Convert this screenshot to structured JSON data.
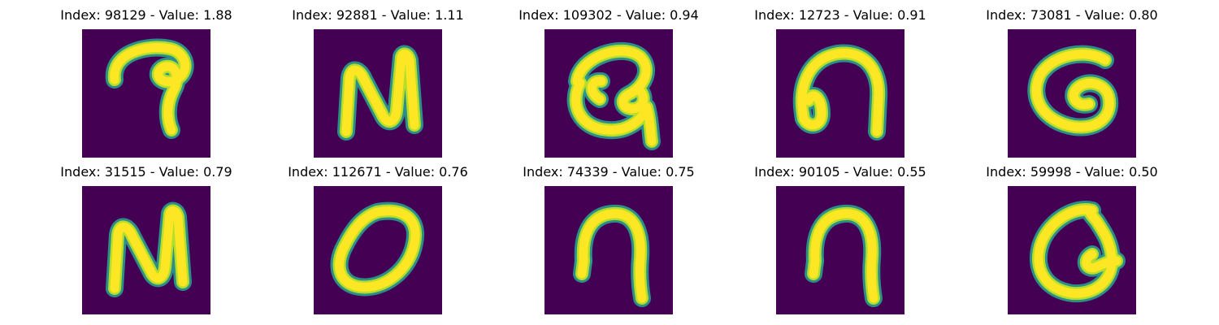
{
  "colors": {
    "background": "#440154",
    "stroke_core": "#fde725",
    "stroke_edge": "#2a9d8f",
    "stroke_mid": "#b5de2b"
  },
  "chart_data": {
    "type": "image-grid",
    "colormap": "viridis",
    "axis": "off",
    "panels": [
      {
        "title": "Index: 98129 - Value: 1.88",
        "index": 98129,
        "value": 1.88,
        "shape": "hook-curl"
      },
      {
        "title": "Index: 92881 - Value: 1.11",
        "index": 92881,
        "value": 1.11,
        "shape": "letter-N"
      },
      {
        "title": "Index: 109302 - Value: 0.94",
        "index": 109302,
        "value": 0.94,
        "shape": "swirl-loop"
      },
      {
        "title": "Index: 12723 - Value: 0.91",
        "index": 12723,
        "value": 0.91,
        "shape": "arch-loop"
      },
      {
        "title": "Index: 73081 - Value: 0.80",
        "index": 73081,
        "value": 0.8,
        "shape": "spiral-G"
      },
      {
        "title": "Index: 31515 - Value: 0.79",
        "index": 31515,
        "value": 0.79,
        "shape": "letter-N"
      },
      {
        "title": "Index: 112671 - Value: 0.76",
        "index": 112671,
        "value": 0.76,
        "shape": "oval"
      },
      {
        "title": "Index: 74339 - Value: 0.75",
        "index": 74339,
        "value": 0.75,
        "shape": "arch"
      },
      {
        "title": "Index: 90105 - Value: 0.55",
        "index": 90105,
        "value": 0.55,
        "shape": "arch"
      },
      {
        "title": "Index: 59998 - Value: 0.50",
        "index": 59998,
        "value": 0.5,
        "shape": "loop-tail"
      }
    ]
  }
}
